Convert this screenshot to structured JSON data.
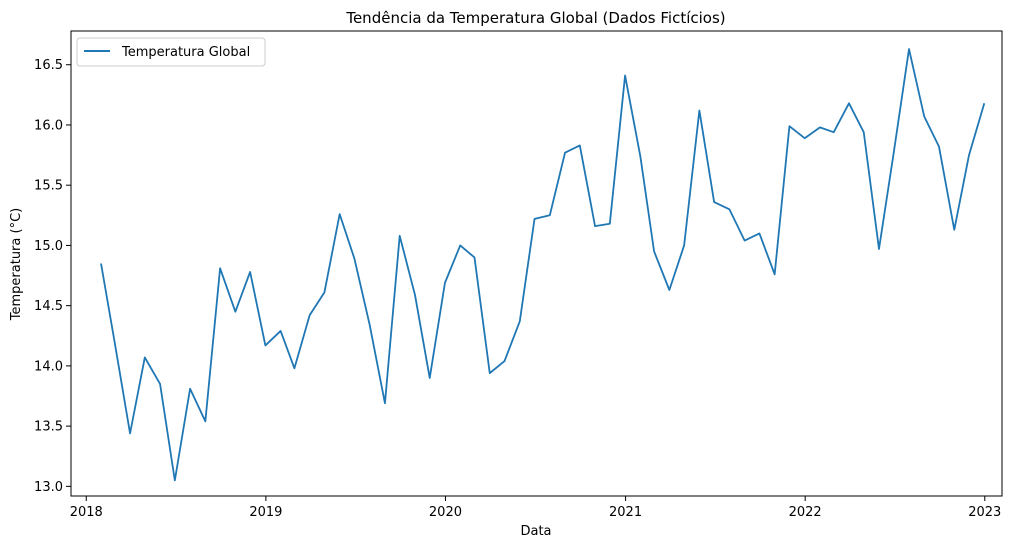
{
  "chart_data": {
    "type": "line",
    "title": "Tendência da Temperatura Global (Dados Fictícios)",
    "xlabel": "Data",
    "ylabel": "Temperatura (°C)",
    "xlim": [
      "2017-12-01",
      "2023-02-05"
    ],
    "ylim": [
      12.92,
      16.78
    ],
    "x_ticks": [
      "2018",
      "2019",
      "2020",
      "2021",
      "2022",
      "2023"
    ],
    "y_ticks": [
      "13.0",
      "13.5",
      "14.0",
      "14.5",
      "15.0",
      "15.5",
      "16.0",
      "16.5"
    ],
    "grid": false,
    "legend": "upper-left",
    "series": [
      {
        "name": "Temperatura Global",
        "color": "#1f77b4",
        "x": [
          "2018-01-31",
          "2018-02-28",
          "2018-03-31",
          "2018-04-30",
          "2018-05-31",
          "2018-06-30",
          "2018-07-31",
          "2018-08-31",
          "2018-09-30",
          "2018-10-31",
          "2018-11-30",
          "2018-12-31",
          "2019-01-31",
          "2019-02-28",
          "2019-03-31",
          "2019-04-30",
          "2019-05-31",
          "2019-06-30",
          "2019-07-31",
          "2019-08-31",
          "2019-09-30",
          "2019-10-31",
          "2019-11-30",
          "2019-12-31",
          "2020-01-31",
          "2020-02-29",
          "2020-03-31",
          "2020-04-30",
          "2020-05-31",
          "2020-06-30",
          "2020-07-31",
          "2020-08-31",
          "2020-09-30",
          "2020-10-31",
          "2020-11-30",
          "2020-12-31",
          "2021-01-31",
          "2021-02-28",
          "2021-03-31",
          "2021-04-30",
          "2021-05-31",
          "2021-06-30",
          "2021-07-31",
          "2021-08-31",
          "2021-09-30",
          "2021-10-31",
          "2021-11-30",
          "2021-12-31",
          "2022-01-31",
          "2022-02-28",
          "2022-03-31",
          "2022-04-30",
          "2022-05-31",
          "2022-06-30",
          "2022-07-31",
          "2022-08-31",
          "2022-09-30",
          "2022-10-31",
          "2022-11-30",
          "2022-12-31"
        ],
        "y": [
          14.85,
          14.19,
          13.44,
          14.07,
          13.85,
          13.05,
          13.81,
          13.54,
          14.81,
          14.45,
          14.78,
          14.17,
          14.29,
          13.98,
          14.42,
          14.61,
          15.26,
          14.89,
          14.34,
          13.69,
          15.08,
          14.59,
          13.9,
          14.69,
          15.0,
          14.9,
          13.94,
          14.04,
          14.37,
          15.22,
          15.25,
          15.77,
          15.83,
          15.16,
          15.18,
          16.41,
          15.74,
          14.95,
          14.63,
          15.0,
          16.12,
          15.36,
          15.3,
          15.04,
          15.1,
          14.76,
          15.99,
          15.89,
          15.98,
          15.94,
          16.18,
          15.94,
          14.97,
          15.77,
          16.63,
          16.07,
          15.82,
          15.13,
          15.75,
          16.18
        ]
      }
    ]
  }
}
